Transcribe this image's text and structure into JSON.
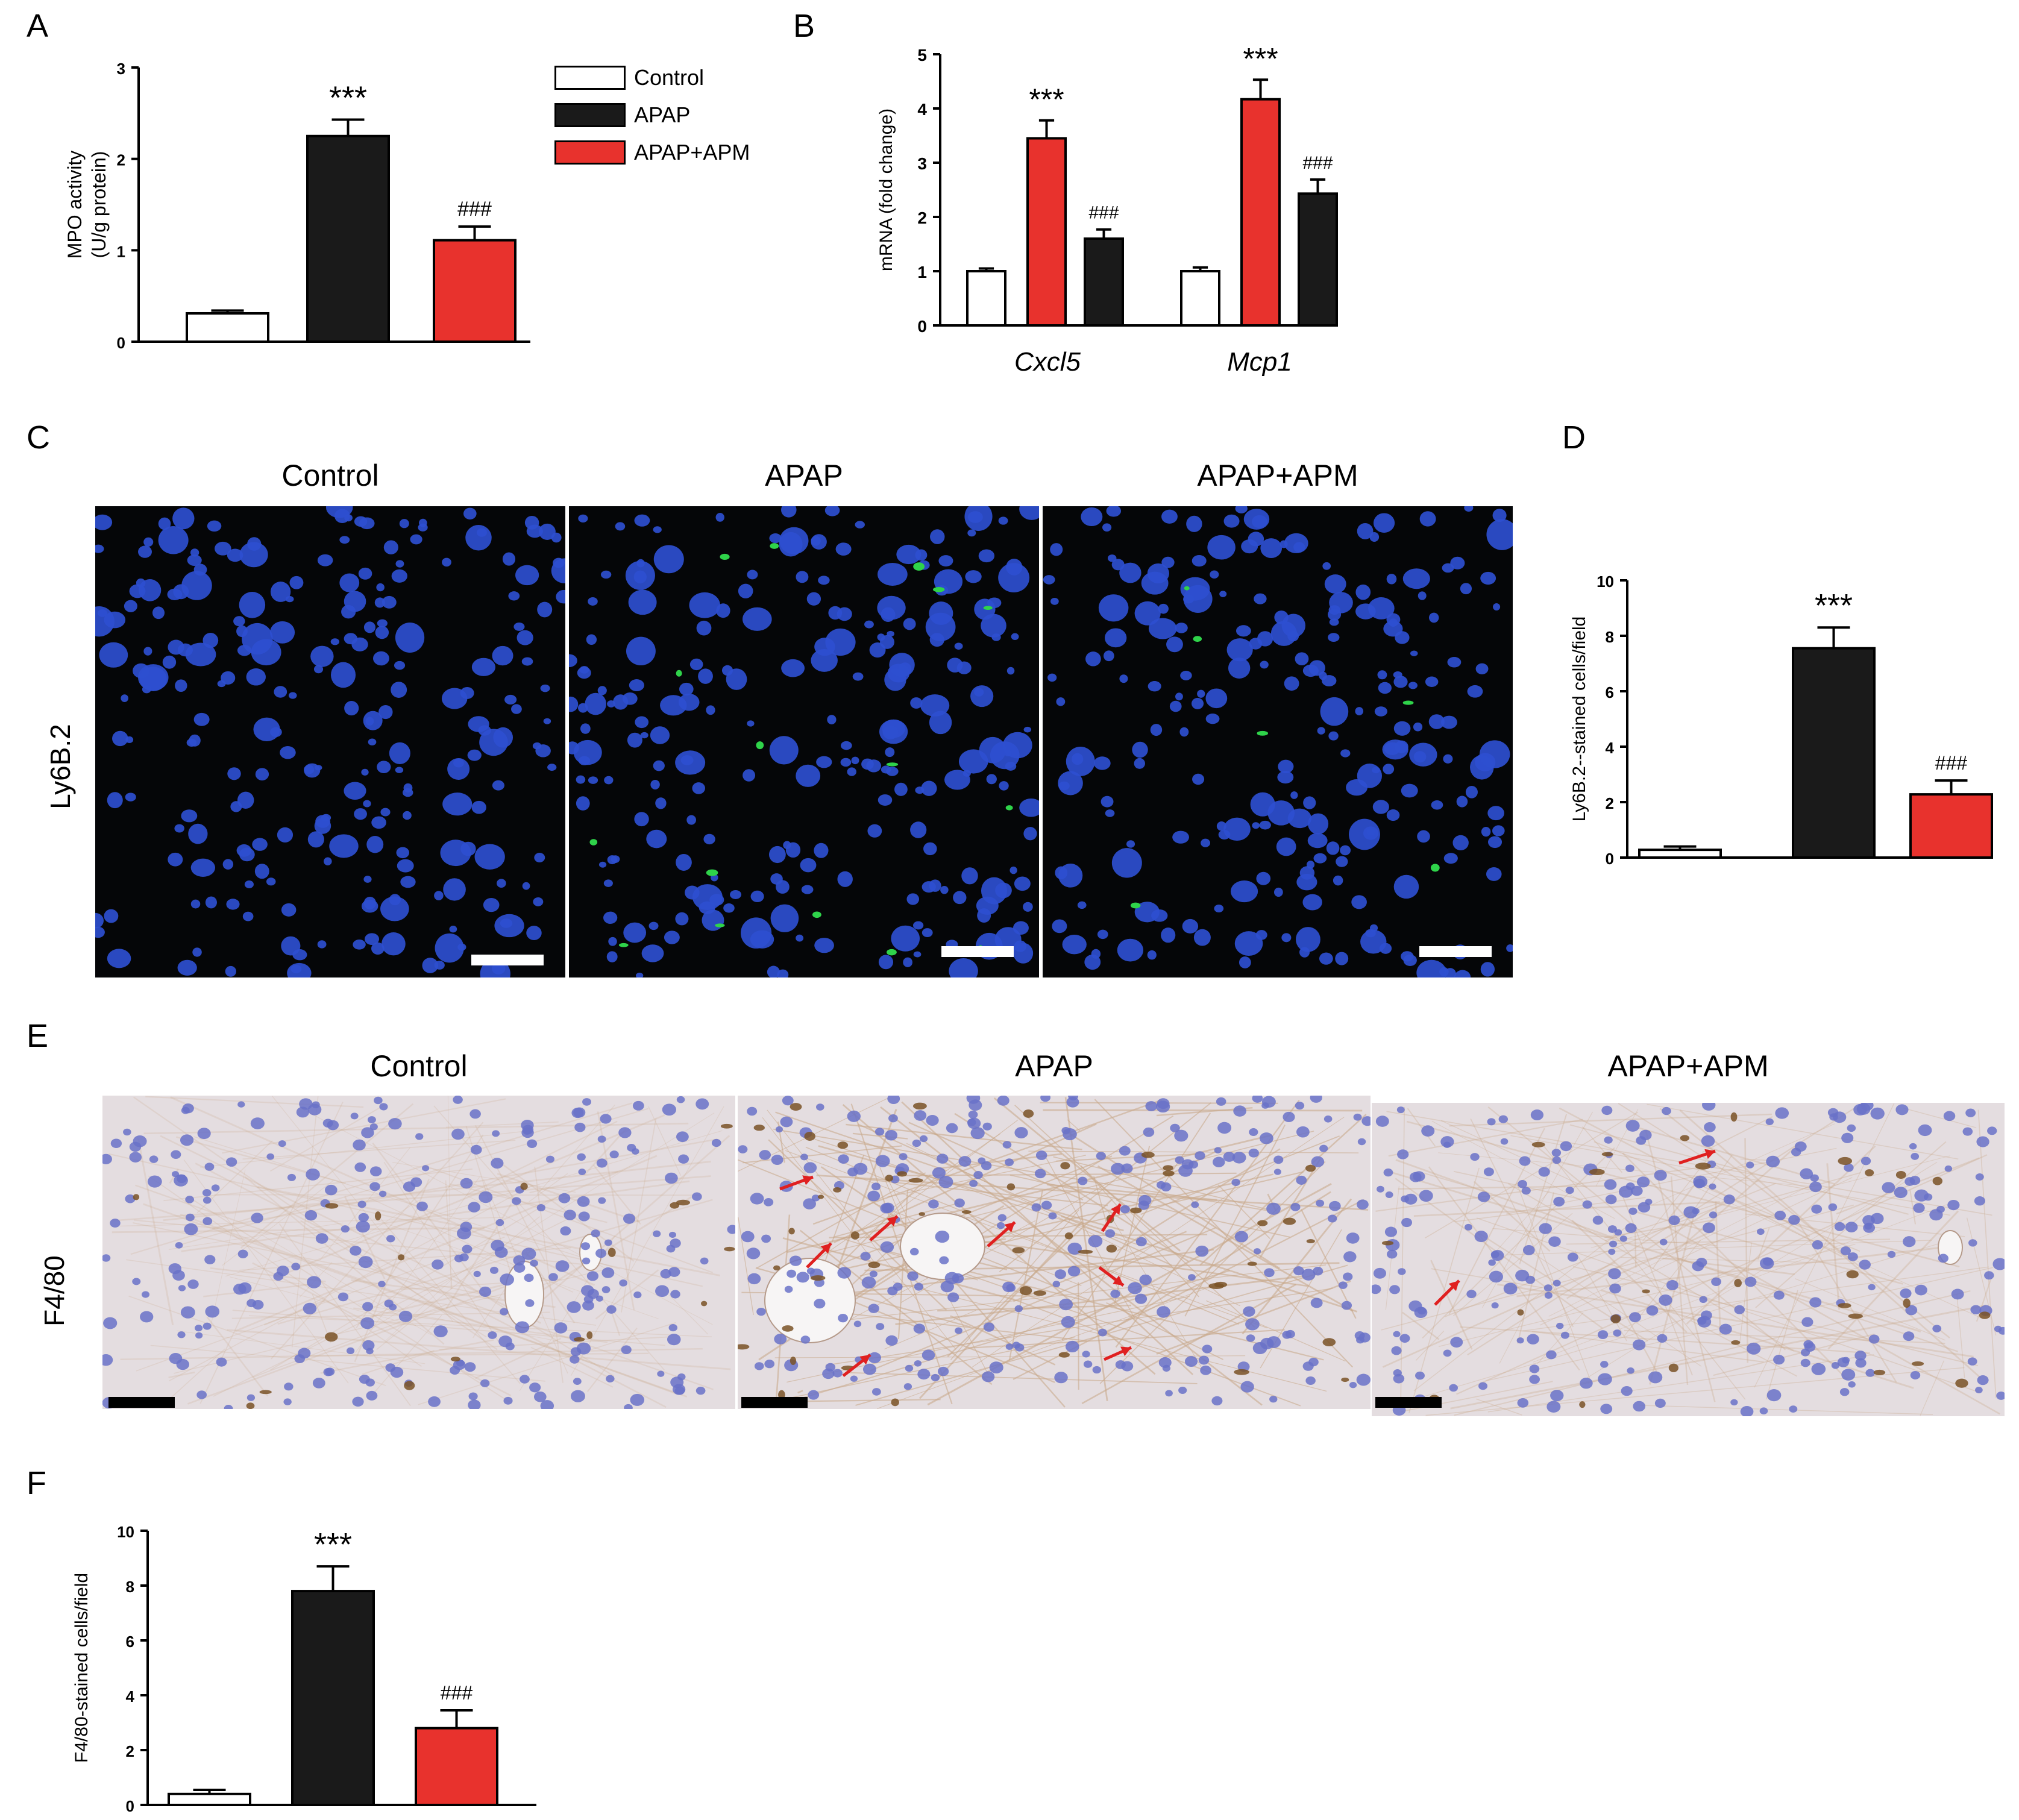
{
  "colors": {
    "control": "#ffffff",
    "apap": "#1a1a1a",
    "apap_apm": "#e8322d",
    "fluor_bg": "#050608",
    "nucleus": "#2e4fd0",
    "ly6b": "#2fd34a",
    "ihc_bg": "#e4dde0",
    "ihc_nucleus": "#6a72c8",
    "f480_stain": "#7a5226",
    "arrow": "#e02020",
    "scalebar_white": "#ffffff",
    "scalebar_black": "#000000"
  },
  "panels": {
    "A": "A",
    "B": "B",
    "C": "C",
    "D": "D",
    "E": "E",
    "F": "F"
  },
  "legend": {
    "items": [
      {
        "label": "Control",
        "color": "#ffffff"
      },
      {
        "label": "APAP",
        "color": "#1a1a1a"
      },
      {
        "label": "APAP+APM",
        "color": "#e8322d"
      }
    ]
  },
  "panel_C": {
    "titles": [
      "Control",
      "APAP",
      "APAP+APM"
    ],
    "row_label": "Ly6B.2",
    "icons": [
      "fluorescence-micrograph",
      "fluorescence-micrograph",
      "fluorescence-micrograph"
    ]
  },
  "panel_E": {
    "titles": [
      "Control",
      "APAP",
      "APAP+APM"
    ],
    "row_label": "F4/80",
    "icons": [
      "ihc-micrograph",
      "ihc-micrograph",
      "ihc-micrograph"
    ]
  },
  "chart_data": [
    {
      "panel": "A",
      "type": "bar",
      "categories": [
        "Control",
        "APAP",
        "APAP+APM"
      ],
      "values": [
        0.31,
        2.25,
        1.11
      ],
      "errors": [
        0.03,
        0.18,
        0.15
      ],
      "annotations": [
        "",
        "***",
        "###"
      ],
      "ylabel_lines": [
        "MPO activity",
        "(U/g protein)"
      ],
      "ylim": [
        0,
        3
      ],
      "yticks": [
        0,
        1,
        2,
        3
      ]
    },
    {
      "panel": "B",
      "type": "bar",
      "groups": [
        "Cxcl5",
        "Mcp1"
      ],
      "series": [
        {
          "values": [
            1.0,
            1.0
          ],
          "errors": [
            0.05,
            0.07
          ]
        },
        {
          "values": [
            3.45,
            4.17
          ],
          "errors": [
            0.33,
            0.36
          ]
        },
        {
          "values": [
            1.6,
            2.43
          ],
          "errors": [
            0.17,
            0.26
          ]
        }
      ],
      "series_colors": [
        "#ffffff",
        "#e8322d",
        "#1a1a1a"
      ],
      "annotations": [
        [
          "",
          "***",
          "###"
        ],
        [
          "",
          "***",
          "###"
        ]
      ],
      "ylabel": "mRNA (fold change)",
      "ylim": [
        0,
        5
      ],
      "yticks": [
        0,
        1,
        2,
        3,
        4,
        5
      ]
    },
    {
      "panel": "D",
      "type": "bar",
      "categories": [
        "Control",
        "APAP",
        "APAP+APM"
      ],
      "values": [
        0.28,
        7.55,
        2.28
      ],
      "errors": [
        0.12,
        0.75,
        0.5
      ],
      "annotations": [
        "",
        "***",
        "###"
      ],
      "ylabel": "Ly6B.2--stained cells/field",
      "ylim": [
        0,
        10
      ],
      "yticks": [
        0,
        2,
        4,
        6,
        8,
        10
      ]
    },
    {
      "panel": "F",
      "type": "bar",
      "categories": [
        "Control",
        "APAP",
        "APAP+APM"
      ],
      "values": [
        0.4,
        7.8,
        2.8
      ],
      "errors": [
        0.15,
        0.9,
        0.65
      ],
      "annotations": [
        "",
        "***",
        "###"
      ],
      "ylabel": "F4/80-stained cells/field",
      "ylim": [
        0,
        10
      ],
      "yticks": [
        0,
        2,
        4,
        6,
        8,
        10
      ]
    }
  ]
}
